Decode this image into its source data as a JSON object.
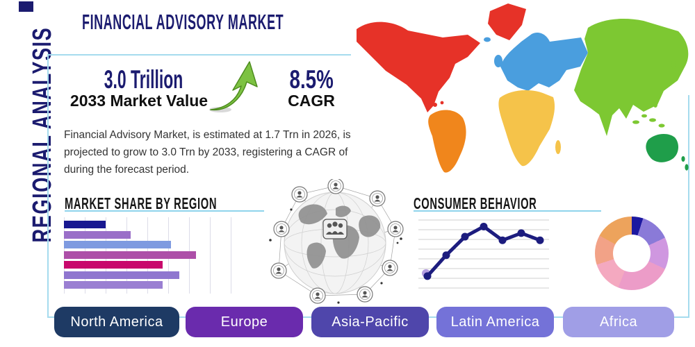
{
  "header": {
    "title": "FINANCIAL ADVISORY MARKET",
    "vertical_label": "REGIONAL ANALYSIS"
  },
  "stats": {
    "market_value": "3.0 Trillion",
    "market_value_label": "2033 Market Value",
    "cagr_value": "8.5%",
    "cagr_label": "CAGR"
  },
  "description": "Financial Advisory Market, is estimated at 1.7 Trn in 2026, is projected to grow to 3.0 Trn by 2033, registering a CAGR of 8.5% during the forecast period.",
  "sections": {
    "market_share_title": "MARKET SHARE BY REGION",
    "consumer_behavior_title": "CONSUMER BEHAVIOR"
  },
  "colors": {
    "accent_navy": "#1b1b6f",
    "box_border": "#a5dbee",
    "underline_blue": "#8fd4ec",
    "growth_arrow_green": "#7dc242",
    "growth_arrow_outline": "#4e8c1f"
  },
  "map": {
    "continents": [
      {
        "name": "North America",
        "color": "#e63228"
      },
      {
        "name": "South America",
        "color": "#f0861c"
      },
      {
        "name": "Europe",
        "color": "#4a9ede"
      },
      {
        "name": "Africa",
        "color": "#f5c34a"
      },
      {
        "name": "Asia",
        "color": "#7dc832"
      },
      {
        "name": "Australia",
        "color": "#1f9e4a"
      }
    ]
  },
  "chart_data": [
    {
      "type": "bar",
      "title": "MARKET SHARE BY REGION",
      "orientation": "horizontal",
      "note": "7 unlabeled horizontal bars, relative share estimated from pixel lengths (percent of axis)",
      "values_pct": [
        25,
        40,
        64,
        79,
        59,
        69,
        59
      ],
      "colors": [
        "#181890",
        "#9a6fc8",
        "#7e9ae0",
        "#ad4fa8",
        "#c8086c",
        "#8f76cf",
        "#9a7fd2"
      ],
      "grid": "vertical, light gray"
    },
    {
      "type": "line",
      "title": "CONSUMER BEHAVIOR",
      "note": "7 unlabeled points, values estimated 0-100 relative scale",
      "values_pct": [
        13,
        48,
        79,
        96,
        73,
        85,
        73
      ],
      "line_color": "#1c1c7e",
      "start_halo_color": "#b49de0",
      "grid": "horizontal, 8 light gray lines"
    },
    {
      "type": "pie",
      "subtype": "donut",
      "title": "",
      "note": "unlabeled donut, slice sizes estimated, clockwise from 12 o'clock",
      "slices_pct": [
        5,
        13,
        14,
        24,
        14,
        13,
        17
      ],
      "colors": [
        "#1c18a0",
        "#8a7ad8",
        "#cf97e0",
        "#ec9cc8",
        "#f4a9c0",
        "#f2a287",
        "#eda35c"
      ]
    }
  ],
  "region_buttons": [
    {
      "label": "North America",
      "color": "#1e3a64"
    },
    {
      "label": "Europe",
      "color": "#6a2bad"
    },
    {
      "label": "Asia-Pacific",
      "color": "#4f46ab"
    },
    {
      "label": "Latin America",
      "color": "#7472d8"
    },
    {
      "label": "Africa",
      "color": "#a09ee6"
    }
  ]
}
